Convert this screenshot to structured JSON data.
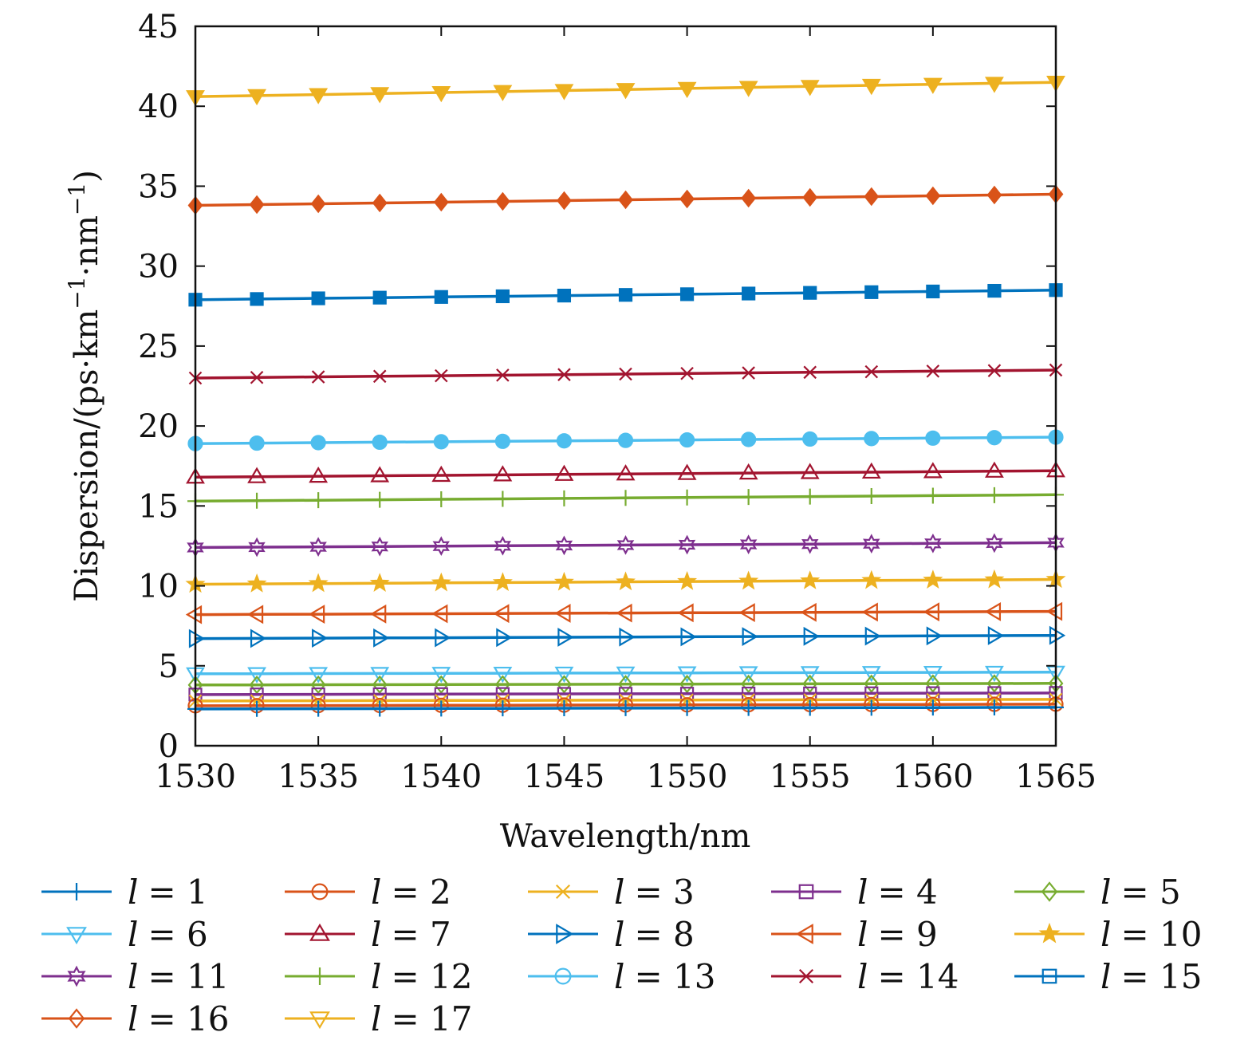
{
  "chart_data": {
    "type": "line",
    "xlabel": "Wavelength/nm",
    "ylabel": "Dispersion/(ps·km",
    "ylabel_sup1": "−1",
    "ylabel_mid": "·nm",
    "ylabel_sup2": "−1",
    "ylabel_end": ")",
    "xlim": [
      1530,
      1565
    ],
    "ylim": [
      0,
      45
    ],
    "x_ticks": [
      "1530",
      "1535",
      "1540",
      "1545",
      "1550",
      "1555",
      "1560",
      "1565"
    ],
    "y_ticks": [
      "0",
      "5",
      "10",
      "15",
      "20",
      "25",
      "30",
      "35",
      "40",
      "45"
    ],
    "grid": false,
    "legend_position": "bottom",
    "x": [
      1530,
      1532.5,
      1535,
      1537.5,
      1540,
      1542.5,
      1545,
      1547.5,
      1550,
      1552.5,
      1555,
      1557.5,
      1560,
      1562.5,
      1565
    ],
    "series": [
      {
        "name": "1",
        "label_var": "l",
        "label_eq": "= 1",
        "color": "#0072BD",
        "marker": "plus",
        "start": 2.3,
        "end": 2.4
      },
      {
        "name": "2",
        "label_var": "l",
        "label_eq": "= 2",
        "color": "#D95319",
        "marker": "circle",
        "start": 2.5,
        "end": 2.6
      },
      {
        "name": "3",
        "label_var": "l",
        "label_eq": "= 3",
        "color": "#EDB120",
        "marker": "x",
        "start": 2.8,
        "end": 2.9
      },
      {
        "name": "4",
        "label_var": "l",
        "label_eq": "= 4",
        "color": "#7E2F8E",
        "marker": "square",
        "start": 3.2,
        "end": 3.3
      },
      {
        "name": "5",
        "label_var": "l",
        "label_eq": "= 5",
        "color": "#77AC30",
        "marker": "diamond",
        "start": 3.8,
        "end": 3.9
      },
      {
        "name": "6",
        "label_var": "l",
        "label_eq": "= 6",
        "color": "#4DBEEE",
        "marker": "triangle-down",
        "start": 4.5,
        "end": 4.6
      },
      {
        "name": "7",
        "label_var": "l",
        "label_eq": "= 7",
        "color": "#A2142F",
        "marker": "triangle-up",
        "start": 16.8,
        "end": 17.2
      },
      {
        "name": "8",
        "label_var": "l",
        "label_eq": "= 8",
        "color": "#0072BD",
        "marker": "triangle-right",
        "start": 6.7,
        "end": 6.9
      },
      {
        "name": "9",
        "label_var": "l",
        "label_eq": "= 9",
        "color": "#D95319",
        "marker": "triangle-left",
        "start": 8.2,
        "end": 8.4
      },
      {
        "name": "10",
        "label_var": "l",
        "label_eq": "= 10",
        "color": "#EDB120",
        "marker": "star",
        "start": 10.1,
        "end": 10.4
      },
      {
        "name": "11",
        "label_var": "l",
        "label_eq": "= 11",
        "color": "#7E2F8E",
        "marker": "hexagram",
        "start": 12.4,
        "end": 12.7
      },
      {
        "name": "12",
        "label_var": "l",
        "label_eq": "= 12",
        "color": "#77AC30",
        "marker": "plus",
        "start": 15.3,
        "end": 15.7
      },
      {
        "name": "13",
        "label_var": "l",
        "label_eq": "= 13",
        "color": "#4DBEEE",
        "marker": "circle-filled",
        "start": 18.9,
        "end": 19.3
      },
      {
        "name": "14",
        "label_var": "l",
        "label_eq": "= 14",
        "color": "#A2142F",
        "marker": "x",
        "start": 23.0,
        "end": 23.5
      },
      {
        "name": "15",
        "label_var": "l",
        "label_eq": "= 15",
        "color": "#0072BD",
        "marker": "square-filled",
        "start": 27.9,
        "end": 28.5
      },
      {
        "name": "16",
        "label_var": "l",
        "label_eq": "= 16",
        "color": "#D95319",
        "marker": "diamond-filled",
        "start": 33.8,
        "end": 34.5
      },
      {
        "name": "17",
        "label_var": "l",
        "label_eq": "= 17",
        "color": "#EDB120",
        "marker": "triangle-down-filled",
        "start": 40.6,
        "end": 41.5
      }
    ]
  }
}
